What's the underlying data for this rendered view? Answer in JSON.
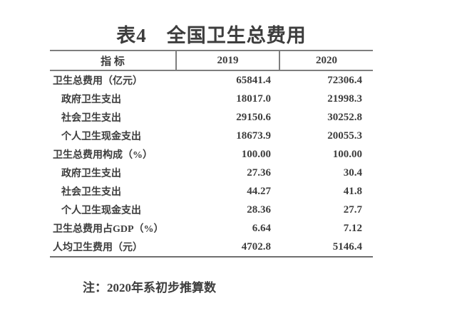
{
  "title": "表4　全国卫生总费用",
  "table": {
    "headers": {
      "indicator": "指 标",
      "col2019": "2019",
      "col2020": "2020"
    },
    "rows": [
      {
        "label": "卫生总费用（亿元）",
        "y2019": "65841.4",
        "y2020": "72306.4"
      },
      {
        "label": "政府卫生支出",
        "y2019": "18017.0",
        "y2020": "21998.3"
      },
      {
        "label": "社会卫生支出",
        "y2019": "29150.6",
        "y2020": "30252.8"
      },
      {
        "label": "个人卫生现金支出",
        "y2019": "18673.9",
        "y2020": "20055.3"
      },
      {
        "label": "卫生总费用构成（%）",
        "y2019": "100.00",
        "y2020": "100.00"
      },
      {
        "label": "政府卫生支出",
        "y2019": "27.36",
        "y2020": "30.4"
      },
      {
        "label": "社会卫生支出",
        "y2019": "44.27",
        "y2020": "41.8"
      },
      {
        "label": "个人卫生现金支出",
        "y2019": "28.36",
        "y2020": "27.7"
      },
      {
        "label": "卫生总费用占GDP（%）",
        "y2019": "6.64",
        "y2020": "7.12"
      },
      {
        "label": "人均卫生费用（元）",
        "y2019": "4702.8",
        "y2020": "5146.4"
      }
    ]
  },
  "note": "注：2020年系初步推算数"
}
